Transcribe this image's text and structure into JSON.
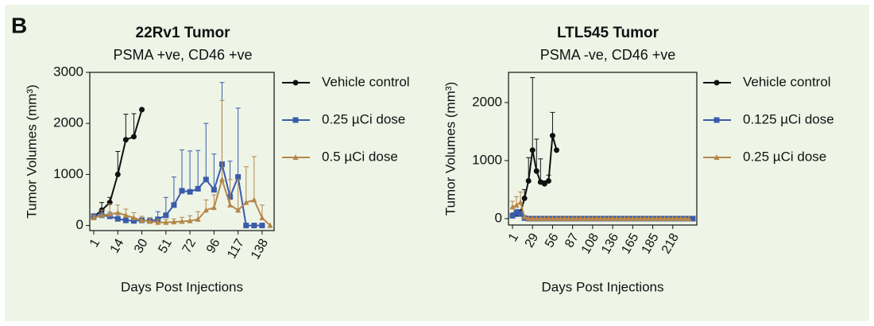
{
  "panel_label": "B",
  "chart_data": [
    {
      "type": "line",
      "title": "22Rv1 Tumor",
      "subtitle": "PSMA +ve, CD46 +ve",
      "x_label": "Days Post Injections",
      "y_label": "Tumor Volumes (mm³)",
      "categories": [
        "1",
        null,
        null,
        "14",
        null,
        null,
        "30",
        null,
        null,
        "51",
        null,
        null,
        "72",
        null,
        null,
        "96",
        null,
        null,
        "117",
        null,
        null,
        "138",
        null
      ],
      "ylim": [
        -100,
        3000
      ],
      "yticks": [
        0,
        1000,
        2000,
        3000
      ],
      "grid": false,
      "legend": "right",
      "series": [
        {
          "name": "Vehicle control",
          "color": "#111111",
          "marker": "circle",
          "values": [
            170,
            300,
            450,
            1000,
            1680,
            1740,
            2270,
            null,
            null,
            null,
            null,
            null,
            null,
            null,
            null,
            null,
            null,
            null,
            null,
            null,
            null,
            null,
            null
          ],
          "errors": [
            40,
            150,
            100,
            450,
            500,
            450,
            null,
            null,
            null,
            null,
            null,
            null,
            null,
            null,
            null,
            null,
            null,
            null,
            null,
            null,
            null,
            null,
            null
          ]
        },
        {
          "name": "0.25 µCi dose",
          "color": "#3a5bab",
          "marker": "square",
          "values": [
            180,
            200,
            180,
            130,
            100,
            90,
            100,
            90,
            120,
            200,
            400,
            680,
            660,
            720,
            900,
            700,
            1200,
            560,
            950,
            0,
            0,
            0,
            null
          ],
          "errors": [
            50,
            60,
            80,
            80,
            70,
            50,
            50,
            60,
            150,
            350,
            550,
            800,
            800,
            750,
            1100,
            700,
            1600,
            700,
            1350,
            null,
            null,
            null,
            null
          ]
        },
        {
          "name": "0.5 µCi dose",
          "color": "#b5874a",
          "marker": "triangle",
          "values": [
            150,
            200,
            220,
            250,
            200,
            150,
            100,
            80,
            60,
            60,
            70,
            80,
            90,
            120,
            300,
            350,
            900,
            400,
            300,
            450,
            500,
            150,
            0
          ],
          "errors": [
            50,
            100,
            200,
            150,
            120,
            100,
            80,
            60,
            60,
            60,
            60,
            80,
            100,
            150,
            200,
            250,
            1550,
            500,
            600,
            700,
            850,
            250,
            null
          ]
        }
      ]
    },
    {
      "type": "line",
      "title": "LTL545 Tumor",
      "subtitle": "PSMA -ve, CD46 +ve",
      "x_label": "Days Post Injections",
      "y_label": "Tumor Volumes (mm³)",
      "categories": [
        "1",
        null,
        null,
        null,
        null,
        "29",
        null,
        null,
        null,
        null,
        "56",
        null,
        null,
        null,
        null,
        "87",
        null,
        null,
        null,
        null,
        "108",
        null,
        null,
        null,
        null,
        "136",
        null,
        null,
        null,
        null,
        "165",
        null,
        null,
        null,
        null,
        "185",
        null,
        null,
        null,
        null,
        "218",
        null,
        null,
        null,
        null,
        null
      ],
      "ylim": [
        -110,
        2520
      ],
      "yticks": [
        0,
        1000,
        2000
      ],
      "grid": false,
      "legend": "right",
      "series": [
        {
          "name": "Vehicle control",
          "color": "#111111",
          "marker": "circle",
          "values": [
            60,
            80,
            100,
            350,
            650,
            1180,
            820,
            630,
            600,
            650,
            1430,
            1180,
            null,
            null,
            null,
            null,
            null,
            null,
            null,
            null,
            null,
            null,
            null,
            null,
            null,
            null,
            null,
            null,
            null,
            null,
            null,
            null,
            null,
            null,
            null,
            null,
            null,
            null,
            null,
            null,
            null,
            null,
            null,
            null,
            null,
            null
          ],
          "errors": [
            20,
            30,
            50,
            150,
            400,
            1250,
            550,
            400,
            50,
            100,
            400,
            null,
            null,
            null,
            null,
            null,
            null,
            null,
            null,
            null,
            null,
            null,
            null,
            null,
            null,
            null,
            null,
            null,
            null,
            null,
            null,
            null,
            null,
            null,
            null,
            null,
            null,
            null,
            null,
            null,
            null,
            null,
            null,
            null,
            null,
            null
          ]
        },
        {
          "name": "0.125 µCi dose",
          "color": "#3a5bab",
          "marker": "square",
          "values": [
            50,
            100,
            80,
            10,
            0,
            0,
            0,
            0,
            0,
            0,
            0,
            0,
            0,
            0,
            0,
            0,
            0,
            0,
            0,
            0,
            0,
            0,
            0,
            0,
            0,
            0,
            0,
            0,
            0,
            0,
            0,
            0,
            0,
            0,
            0,
            0,
            0,
            0,
            0,
            0,
            0,
            0,
            0,
            0,
            0,
            0
          ],
          "errors": [
            30,
            60,
            50,
            null,
            null,
            null,
            null,
            null,
            null,
            null,
            null,
            null,
            null,
            null,
            null,
            null,
            null,
            null,
            null,
            null,
            null,
            null,
            null,
            null,
            null,
            null,
            null,
            null,
            null,
            null,
            null,
            null,
            null,
            null,
            null,
            null,
            null,
            null,
            null,
            null,
            null,
            null,
            null,
            null,
            null,
            null
          ]
        },
        {
          "name": "0.25 µCi dose",
          "color": "#b5874a",
          "marker": "triangle",
          "values": [
            200,
            230,
            280,
            30,
            0,
            0,
            0,
            0,
            0,
            0,
            0,
            0,
            0,
            0,
            0,
            0,
            0,
            0,
            0,
            0,
            0,
            0,
            0,
            0,
            0,
            0,
            0,
            0,
            0,
            0,
            0,
            0,
            0,
            0,
            0,
            0,
            0,
            0,
            0,
            0,
            0,
            0,
            0,
            0,
            0,
            null
          ],
          "errors": [
            100,
            150,
            180,
            null,
            null,
            null,
            null,
            null,
            null,
            null,
            null,
            null,
            null,
            null,
            null,
            null,
            null,
            null,
            null,
            null,
            null,
            null,
            null,
            null,
            null,
            null,
            null,
            null,
            null,
            null,
            null,
            null,
            null,
            null,
            null,
            null,
            null,
            null,
            null,
            null,
            null,
            null,
            null,
            null,
            null,
            null
          ]
        }
      ]
    }
  ]
}
